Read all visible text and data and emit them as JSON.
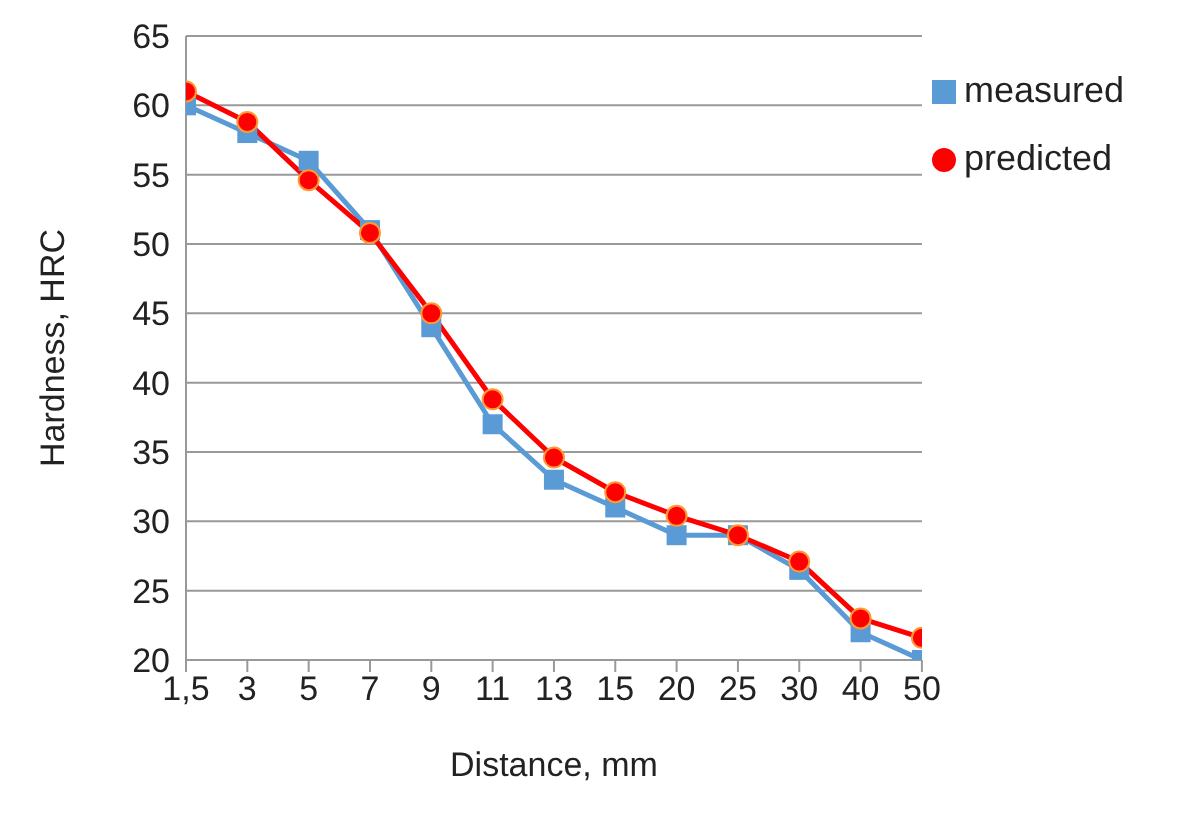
{
  "chart_data": {
    "type": "line",
    "xlabel": "Distance, mm",
    "ylabel": "Hardness, HRC",
    "categories": [
      "1,5",
      "3",
      "5",
      "7",
      "9",
      "11",
      "13",
      "15",
      "20",
      "25",
      "30",
      "40",
      "50"
    ],
    "series": [
      {
        "name": "measured",
        "color": "#5b9bd5",
        "marker": "square",
        "values": [
          60,
          58,
          56,
          51,
          44,
          37,
          33,
          31,
          29,
          29,
          26.5,
          22,
          20
        ]
      },
      {
        "name": "predicted",
        "color": "#ff0000",
        "marker": "circle",
        "values": [
          61,
          58.8,
          54.6,
          50.8,
          45,
          38.8,
          34.6,
          32.1,
          30.4,
          29,
          27.1,
          23,
          21.6
        ]
      }
    ],
    "ylim": [
      20,
      65
    ],
    "yticks": [
      20,
      25,
      30,
      35,
      40,
      45,
      50,
      55,
      60,
      65
    ],
    "grid": "y",
    "legend": "top right",
    "line_style": "solid"
  }
}
